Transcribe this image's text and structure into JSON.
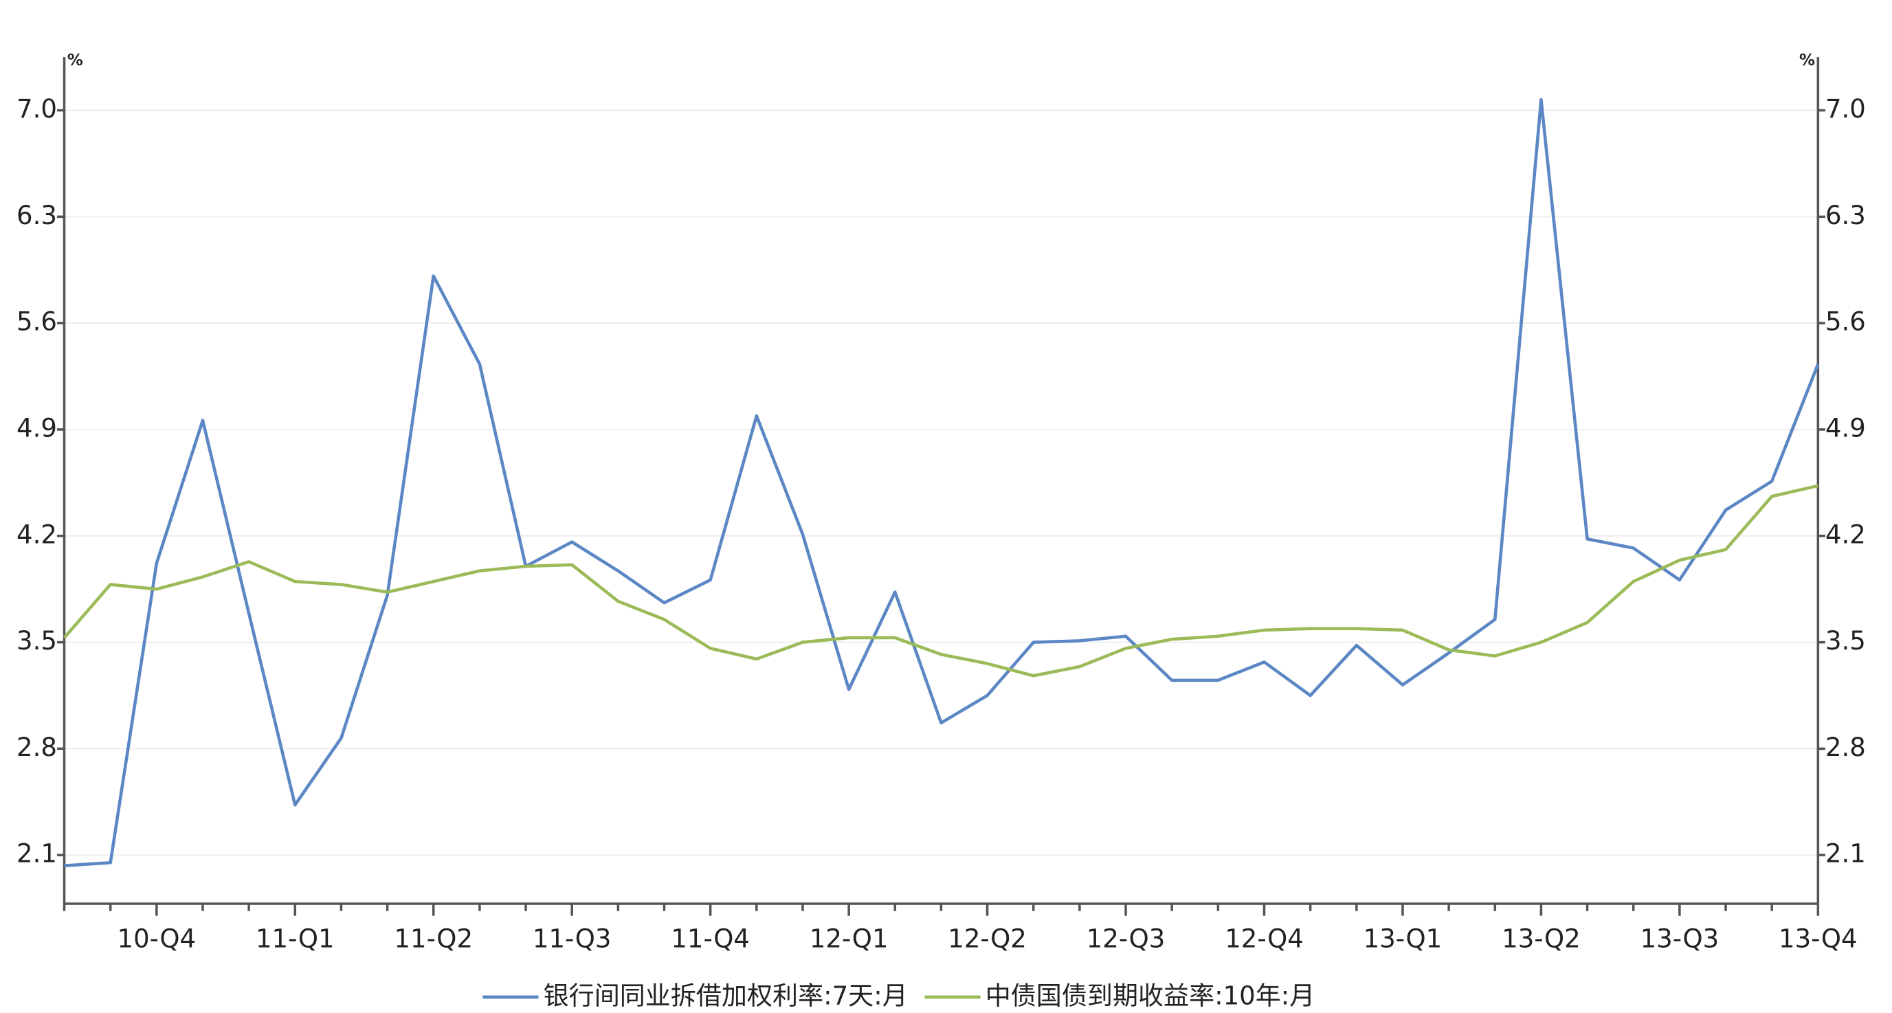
{
  "chart_data": {
    "type": "line",
    "categories": [
      null,
      null,
      "10-Q4",
      null,
      null,
      "11-Q1",
      null,
      null,
      "11-Q2",
      null,
      null,
      "11-Q3",
      null,
      null,
      "11-Q4",
      null,
      null,
      "12-Q1",
      null,
      null,
      "12-Q2",
      null,
      null,
      "12-Q3",
      null,
      null,
      "12-Q4",
      null,
      null,
      "13-Q1",
      null,
      null,
      "13-Q2",
      null,
      null,
      "13-Q3",
      null,
      null,
      "13-Q4"
    ],
    "series": [
      {
        "name": "银行间同业拆借加权利率:7天:月",
        "color": "#5b87c5",
        "values": [
          2.03,
          2.05,
          4.02,
          4.96,
          3.69,
          2.43,
          2.87,
          3.81,
          5.91,
          5.33,
          4.0,
          4.16,
          3.97,
          3.76,
          3.91,
          4.99,
          4.21,
          3.19,
          3.83,
          2.97,
          3.15,
          3.5,
          3.51,
          3.54,
          3.25,
          3.25,
          3.37,
          3.15,
          3.48,
          3.22,
          3.43,
          3.65,
          7.07,
          4.18,
          4.12,
          3.91,
          4.37,
          4.56,
          5.33
        ]
      },
      {
        "name": "中债国债到期收益率:10年:月",
        "color": "#9bbb59",
        "axis": "y2",
        "values": [
          3.53,
          3.88,
          3.85,
          3.93,
          4.03,
          3.9,
          3.88,
          3.83,
          3.9,
          3.97,
          4.0,
          4.01,
          3.77,
          3.65,
          3.46,
          3.39,
          3.5,
          3.53,
          3.53,
          3.42,
          3.36,
          3.28,
          3.34,
          3.46,
          3.52,
          3.54,
          3.58,
          3.59,
          3.59,
          3.58,
          3.45,
          3.41,
          3.5,
          3.63,
          3.9,
          4.04,
          4.11,
          4.46,
          4.53
        ]
      }
    ],
    "y_unit": "%",
    "y2_unit": "%",
    "ylim": [
      1.78,
      7.35
    ],
    "yticks": [
      2.1,
      2.8,
      3.5,
      4.2,
      4.9,
      5.6,
      6.3,
      {
        "value": 7,
        "label": "7.0"
      }
    ],
    "y2lim": [
      1.78,
      7.35
    ],
    "y2ticks": [
      2.1,
      2.8,
      3.5,
      4.2,
      4.9,
      5.6,
      6.3,
      {
        "value": 7,
        "label": "7.0"
      }
    ],
    "grid": true,
    "legend": "bottom"
  }
}
